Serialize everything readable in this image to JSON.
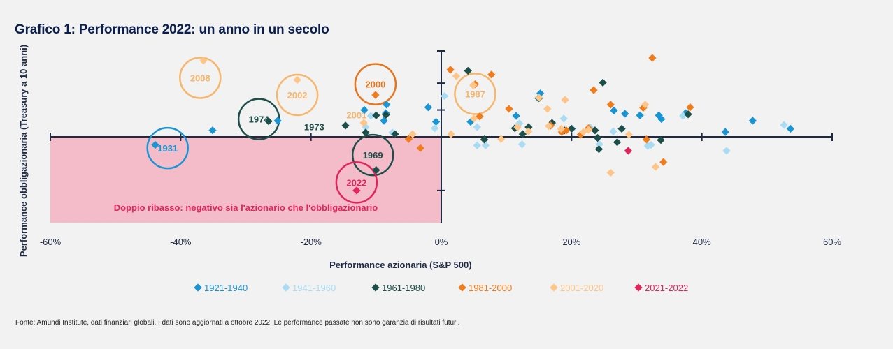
{
  "title": "Grafico 1: Performance 2022: un anno in un secolo",
  "footnote": "Fonte: Amundi Institute, dati finanziari globali. I dati sono aggiornati a ottobre 2022. Le performance passate non sono garanzia di risultati futuri.",
  "chart_data": {
    "type": "scatter",
    "title": "Grafico 1: Performance 2022: un anno in un secolo",
    "xlabel": "Performance azionaria (S&P 500)",
    "ylabel": "Performance obbligazionaria (Treasury a 10 anni)",
    "xlim": [
      -60,
      60
    ],
    "ylim": [
      -16,
      16
    ],
    "x_ticks": [
      "-60%",
      "-40%",
      "-20%",
      "0%",
      "20%",
      "40%",
      "60%"
    ],
    "shaded_region_label": "Doppio ribasso: negativo sia l'azionario che l'obbligazionario",
    "series": [
      {
        "name": "1921-1940",
        "color": "#1a95d4",
        "points": [
          [
            -43.9,
            -1.5
          ],
          [
            -35.1,
            1.2
          ],
          [
            -25.1,
            3.0
          ],
          [
            -11.8,
            5.0
          ],
          [
            -8.5,
            4.4
          ],
          [
            -8.8,
            3.0
          ],
          [
            -2,
            5.5
          ],
          [
            -0.8,
            2.8
          ],
          [
            4.5,
            2.8
          ],
          [
            11.5,
            3.9
          ],
          [
            15.2,
            8.1
          ],
          [
            26.5,
            4.9
          ],
          [
            28.2,
            4.3
          ],
          [
            30.5,
            4.0
          ],
          [
            33.4,
            4.0
          ],
          [
            33.8,
            3.3
          ],
          [
            37.5,
            4.4
          ],
          [
            43.6,
            0.9
          ],
          [
            47.8,
            3.0
          ],
          [
            53.6,
            1.5
          ],
          [
            -8.4,
            6.0
          ],
          [
            14.9,
            7.2
          ]
        ]
      },
      {
        "name": "1941-1960",
        "color": "#a9dcf3",
        "points": [
          [
            -11.6,
            1.8
          ],
          [
            -10.8,
            3.9
          ],
          [
            -7.5,
            0.8
          ],
          [
            -1,
            1.6
          ],
          [
            0.5,
            7.6
          ],
          [
            5.5,
            1.8
          ],
          [
            5.5,
            -1.6
          ],
          [
            6.8,
            -1.6
          ],
          [
            12.4,
            -1.4
          ],
          [
            18.8,
            3.4
          ],
          [
            20.1,
            1.5
          ],
          [
            22.8,
            1.8
          ],
          [
            26.4,
            1.0
          ],
          [
            31.7,
            -1.7
          ],
          [
            32.2,
            -1.5
          ],
          [
            37.1,
            3.9
          ],
          [
            43.8,
            -2.6
          ],
          [
            52.6,
            2.2
          ],
          [
            24.3,
            -1.4
          ],
          [
            12.0,
            2.5
          ]
        ]
      },
      {
        "name": "1961-1980",
        "color": "#1c4f4a",
        "points": [
          [
            -26.5,
            2.9
          ],
          [
            -14.7,
            2.1
          ],
          [
            -10.0,
            4.0
          ],
          [
            -8.5,
            4.1
          ],
          [
            -7.1,
            0.5
          ],
          [
            -11.6,
            0.8
          ],
          [
            -10,
            -6.2
          ],
          [
            4.1,
            12.3
          ],
          [
            6.6,
            -0.5
          ],
          [
            11.3,
            1.6
          ],
          [
            13.4,
            1.8
          ],
          [
            18.9,
            1.2
          ],
          [
            20,
            1.5
          ],
          [
            23.6,
            1.2
          ],
          [
            24.8,
            10.1
          ],
          [
            24.0,
            -0.2
          ],
          [
            24.2,
            -2.3
          ],
          [
            27,
            -1
          ],
          [
            27.7,
            1.5
          ],
          [
            17,
            2.6
          ],
          [
            33.7,
            -0.6
          ],
          [
            37.9,
            4.2
          ],
          [
            15.0,
            7.2
          ],
          [
            12.5,
            0.5
          ]
        ]
      },
      {
        "name": "1981-2000",
        "color": "#f07c1c",
        "points": [
          [
            -10.1,
            7.8
          ],
          [
            -5.0,
            -0.4
          ],
          [
            -3.2,
            -2.1
          ],
          [
            1.4,
            12.5
          ],
          [
            5.2,
            9.8
          ],
          [
            5.9,
            3.8
          ],
          [
            7.7,
            11.6
          ],
          [
            10.4,
            5.2
          ],
          [
            16.8,
            2.1
          ],
          [
            18.5,
            0.9
          ],
          [
            21.4,
            0.4
          ],
          [
            22.6,
            1.6
          ],
          [
            23.4,
            8.7
          ],
          [
            31.0,
            5.4
          ],
          [
            32.4,
            14.7
          ],
          [
            34.1,
            -4.7
          ],
          [
            26.0,
            6.0
          ],
          [
            38.2,
            5.5
          ],
          [
            31.5,
            -0.5
          ],
          [
            19.2,
            1.2
          ]
        ]
      },
      {
        "name": "2001-2020",
        "color": "#fdc688",
        "points": [
          [
            -36.5,
            14.2
          ],
          [
            -22.1,
            10.6
          ],
          [
            -11.9,
            2.6
          ],
          [
            -4.4,
            0.5
          ],
          [
            1.5,
            0.5
          ],
          [
            2.3,
            11.3
          ],
          [
            4.9,
            9.6
          ],
          [
            5.0,
            3.4
          ],
          [
            9.2,
            -0.4
          ],
          [
            11.7,
            1.8
          ],
          [
            13.4,
            1.0
          ],
          [
            15.0,
            7.3
          ],
          [
            16.3,
            5.2
          ],
          [
            18.4,
            1.5
          ],
          [
            19.0,
            6.9
          ],
          [
            21.8,
            0.9
          ],
          [
            22.6,
            1.3
          ],
          [
            26.0,
            -6.7
          ],
          [
            28.8,
            0.4
          ],
          [
            31.3,
            6.0
          ],
          [
            32.9,
            -5.6
          ],
          [
            16.5,
            2.0
          ]
        ]
      },
      {
        "name": "2021-2022",
        "color": "#e2245a",
        "points": [
          [
            28.7,
            -2.6
          ],
          [
            -13.0,
            -10.0
          ]
        ]
      }
    ],
    "annotations": [
      {
        "label": "2008",
        "x": -37.0,
        "y": 11.0,
        "circle": true,
        "color": "#f6b66c"
      },
      {
        "label": "2002",
        "x": -22.1,
        "y": 7.8,
        "circle": true,
        "color": "#f6b66c"
      },
      {
        "label": "2000",
        "x": -10.1,
        "y": 9.8,
        "circle": true,
        "color": "#e8751c"
      },
      {
        "label": "1987",
        "x": 5.2,
        "y": 8.0,
        "circle": true,
        "color": "#f6b66c"
      },
      {
        "label": "1974",
        "x": -28.0,
        "y": 3.3,
        "circle": true,
        "color": "#1c4f4a"
      },
      {
        "label": "1931",
        "x": -42.0,
        "y": -2.1,
        "circle": true,
        "color": "#1a95d4"
      },
      {
        "label": "1969",
        "x": -10.5,
        "y": -3.4,
        "circle": true,
        "color": "#1c4f4a"
      },
      {
        "label": "2022",
        "x": -13.0,
        "y": -8.5,
        "circle": true,
        "color": "#e2245a"
      },
      {
        "label": "2001",
        "x": -13.0,
        "y": 4.1,
        "circle": false,
        "color": "#f6b66c"
      },
      {
        "label": "1973",
        "x": -19.5,
        "y": 1.9,
        "circle": false,
        "color": "#1c4f4a"
      }
    ],
    "legend_position": "bottom",
    "grid": false
  }
}
